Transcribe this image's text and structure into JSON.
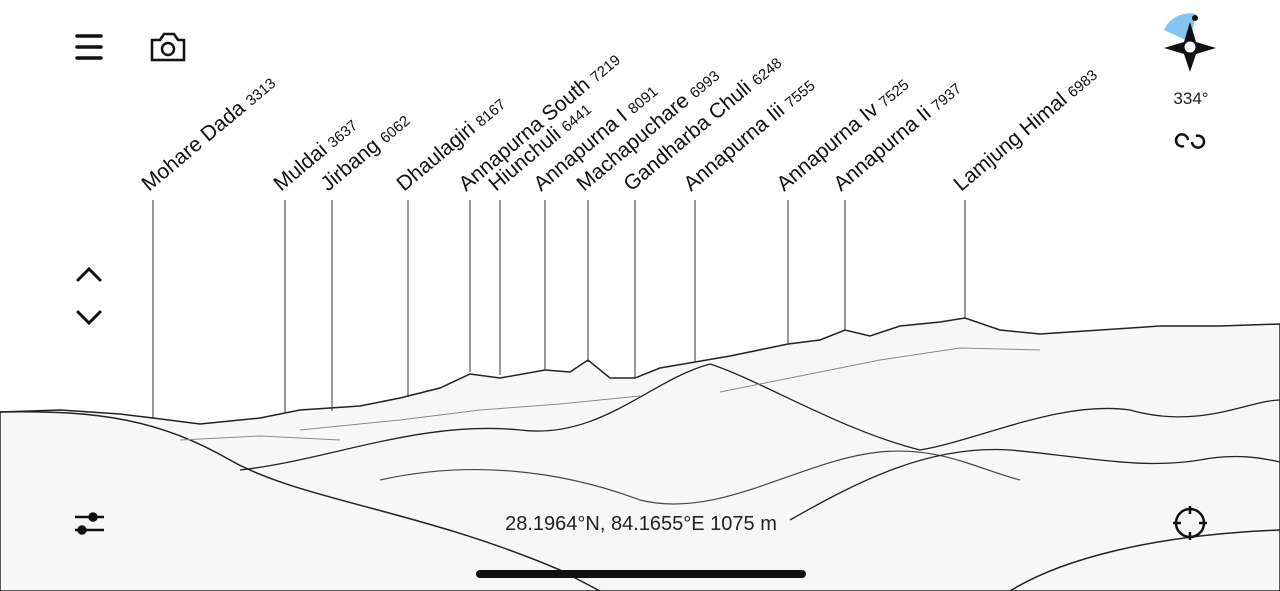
{
  "peaks": [
    {
      "name": "Mohare Dada",
      "elevation": 3313
    },
    {
      "name": "Muldai",
      "elevation": 3637
    },
    {
      "name": "Jirbang",
      "elevation": 6062
    },
    {
      "name": "Dhaulagiri",
      "elevation": 8167
    },
    {
      "name": "Annapurna South",
      "elevation": 7219
    },
    {
      "name": "Hiunchuli",
      "elevation": 6441
    },
    {
      "name": "Annapurna I",
      "elevation": 8091
    },
    {
      "name": "Machapuchare",
      "elevation": 6993
    },
    {
      "name": "Gandharba Chuli",
      "elevation": 6248
    },
    {
      "name": "Annapurna Iii",
      "elevation": 7555
    },
    {
      "name": "Annapurna Iv",
      "elevation": 7525
    },
    {
      "name": "Annapurna Ii",
      "elevation": 7937
    },
    {
      "name": "Lamjung Himal",
      "elevation": 6983
    }
  ],
  "compass": {
    "heading": "334°"
  },
  "location": {
    "coordinates": "28.1964°N, 84.1655°E 1075 m"
  }
}
